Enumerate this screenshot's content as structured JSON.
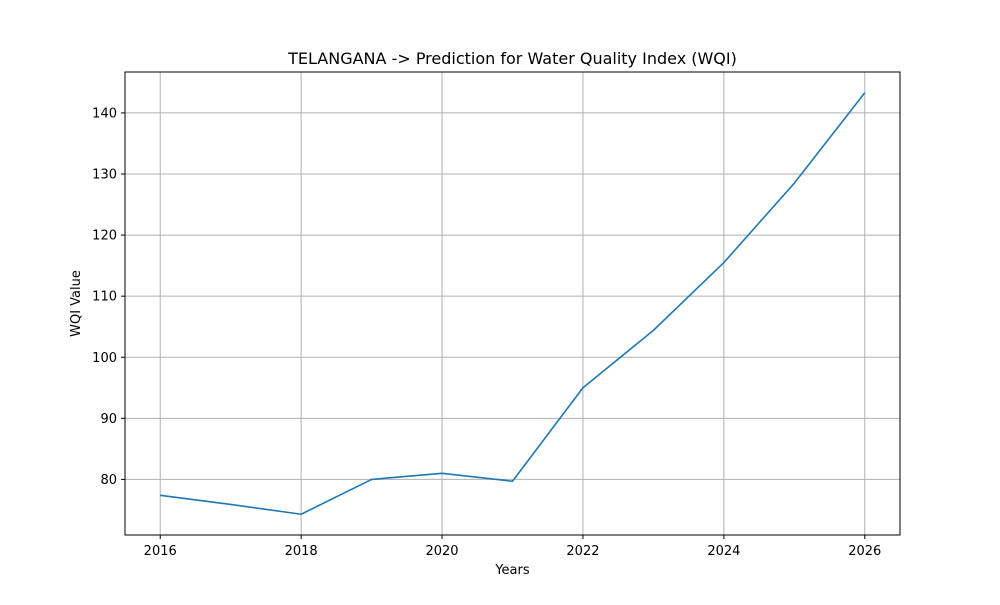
{
  "chart_data": {
    "type": "line",
    "title": "TELANGANA -> Prediction for Water Quality Index (WQI)",
    "xlabel": "Years",
    "ylabel": "WQI Value",
    "xlim": [
      2015.5,
      2026.5
    ],
    "ylim": [
      70.9,
      146.7
    ],
    "x_ticks": [
      "2016",
      "2018",
      "2020",
      "2022",
      "2024",
      "2026"
    ],
    "y_ticks": [
      "80",
      "90",
      "100",
      "110",
      "120",
      "130",
      "140"
    ],
    "grid": true,
    "colors": {
      "line": "#1f77b4",
      "grid": "#b0b0b0"
    },
    "series": [
      {
        "x": [
          2016,
          2017,
          2018,
          2019,
          2020,
          2021,
          2022,
          2023,
          2024,
          2025,
          2026
        ],
        "values": [
          77.4,
          75.9,
          74.3,
          80.0,
          81.0,
          79.7,
          95.0,
          104.4,
          115.5,
          128.5,
          143.3
        ]
      }
    ]
  }
}
